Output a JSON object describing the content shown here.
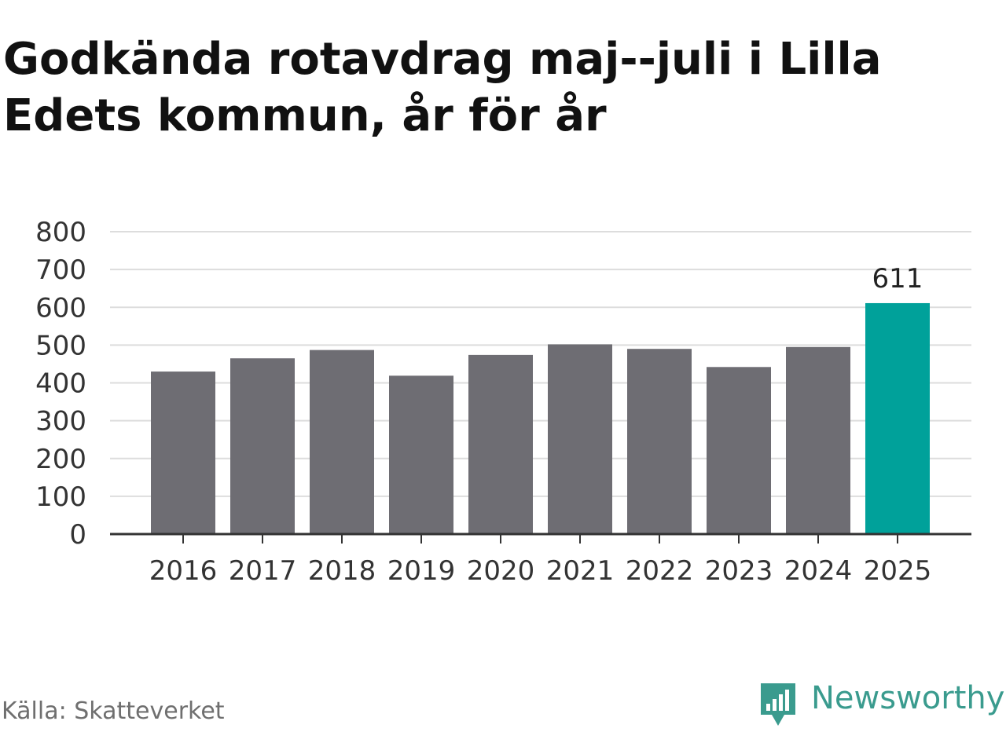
{
  "title": "Godkända rotavdrag maj--juli i Lilla Edets kommun, år för år",
  "source": "Källa: Skatteverket",
  "brand": {
    "name": "Newsworthy",
    "icon": "newsworthy-logo-icon",
    "color": "#3a9b8e"
  },
  "colors": {
    "bar": "#6e6d73",
    "highlight": "#00a19a",
    "grid": "#dddddd",
    "axis": "#333333"
  },
  "chart_data": {
    "type": "bar",
    "title": "Godkända rotavdrag maj--juli i Lilla Edets kommun, år för år",
    "xlabel": "",
    "ylabel": "",
    "ylim": [
      0,
      800
    ],
    "yticks": [
      0,
      100,
      200,
      300,
      400,
      500,
      600,
      700,
      800
    ],
    "grid": true,
    "categories": [
      "2016",
      "2017",
      "2018",
      "2019",
      "2020",
      "2021",
      "2022",
      "2023",
      "2024",
      "2025"
    ],
    "values": [
      430,
      465,
      487,
      419,
      474,
      502,
      490,
      442,
      495,
      611
    ],
    "highlight_index": 9,
    "data_labels": [
      {
        "index": 9,
        "text": "611"
      }
    ]
  }
}
